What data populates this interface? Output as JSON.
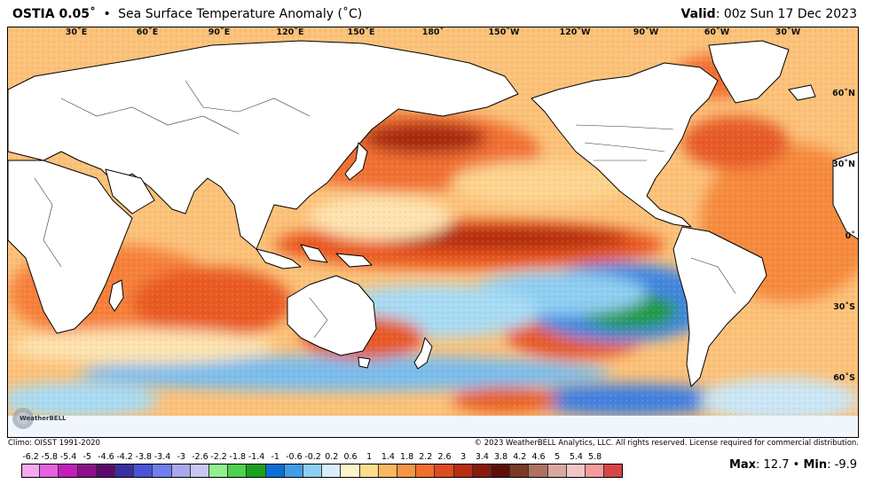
{
  "header": {
    "model": "OSTIA 0.05˚",
    "bullet": "•",
    "title": "Sea Surface Temperature Anomaly (˚C)",
    "valid_label": "Valid",
    "valid_value": ": 00z Sun 17 Dec 2023"
  },
  "map": {
    "lon_labels": [
      "30˚E",
      "60˚E",
      "90˚E",
      "120˚E",
      "150˚E",
      "180˚",
      "150˚W",
      "120˚W",
      "90˚W",
      "60˚W",
      "30˚W"
    ],
    "lat_labels": [
      "60˚N",
      "30˚N",
      "0˚",
      "30˚S",
      "60˚S"
    ],
    "land_color": "#ffffff",
    "border_color": "#000000"
  },
  "logo": {
    "name": "weatherbell-logo",
    "text": "WeatherBELL"
  },
  "footer": {
    "climo": "Climo: OISST 1991-2020",
    "copyright": "© 2023 WeatherBELL Analytics, LLC. All rights reserved. License required for commercial distribution."
  },
  "colorbar": {
    "labels": [
      "-6.2",
      "-5.8",
      "-5.4",
      "-5",
      "-4.6",
      "-4.2",
      "-3.8",
      "-3.4",
      "-3",
      "-2.6",
      "-2.2",
      "-1.8",
      "-1.4",
      "-1",
      "-0.6",
      "-0.2",
      "0.2",
      "0.6",
      "1",
      "1.4",
      "1.8",
      "2.2",
      "2.6",
      "3",
      "3.4",
      "3.8",
      "4.2",
      "4.6",
      "5",
      "5.4",
      "5.8"
    ],
    "colors": [
      "#f7a8f0",
      "#e663e0",
      "#c21dbd",
      "#8e0f8a",
      "#5a0a6a",
      "#3a2ea0",
      "#4a52d8",
      "#6f7ef0",
      "#a9a7f0",
      "#c9c6f5",
      "#8ff08f",
      "#4cd24c",
      "#1aa11a",
      "#0a6fd4",
      "#3f9ee8",
      "#8ccff3",
      "#d6eff9",
      "#fdf3c8",
      "#fddc8c",
      "#fcb85e",
      "#f79445",
      "#f06f2f",
      "#e04a1f",
      "#b82c12",
      "#8a1a0c",
      "#5e0e06",
      "#7a3a26",
      "#b07060",
      "#d8a8a0",
      "#f3c6c6",
      "#f59a9a",
      "#d84545"
    ]
  },
  "stats": {
    "max_label": "Max",
    "max_value": ": 12.7",
    "sep": " • ",
    "min_label": "Min",
    "min_value": ": -9.9"
  }
}
